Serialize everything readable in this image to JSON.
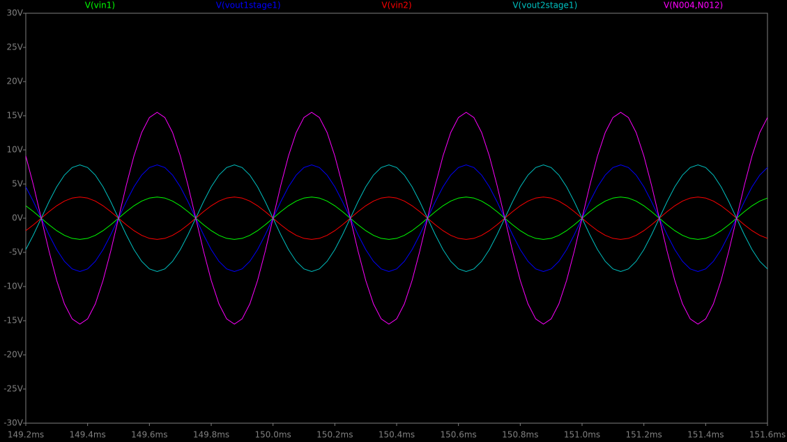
{
  "chart_data": {
    "type": "line",
    "x": [
      149.2,
      149.225,
      149.25,
      149.275,
      149.3,
      149.325,
      149.35,
      149.375,
      149.4,
      149.425,
      149.45,
      149.475,
      149.5,
      149.525,
      149.55,
      149.575,
      149.6,
      149.625,
      149.65,
      149.675,
      149.7,
      149.725,
      149.75,
      149.775,
      149.8,
      149.825,
      149.85,
      149.875,
      149.9,
      149.925,
      149.95,
      149.975,
      150.0,
      150.025,
      150.05,
      150.075,
      150.1,
      150.125,
      150.15,
      150.175,
      150.2,
      150.225,
      150.25,
      150.275,
      150.3,
      150.325,
      150.35,
      150.375,
      150.4,
      150.425,
      150.45,
      150.475,
      150.5,
      150.525,
      150.55,
      150.575,
      150.6,
      150.625,
      150.65,
      150.675,
      150.7,
      150.725,
      150.75,
      150.775,
      150.8,
      150.825,
      150.85,
      150.875,
      150.9,
      150.925,
      150.95,
      150.975,
      151.0,
      151.025,
      151.05,
      151.075,
      151.1,
      151.125,
      151.15,
      151.175,
      151.2,
      151.225,
      151.25,
      151.275,
      151.3,
      151.325,
      151.35,
      151.375,
      151.4,
      151.425,
      151.45,
      151.475,
      151.5,
      151.525,
      151.55,
      151.575,
      151.6
    ],
    "series": [
      {
        "name": "V(vin1)",
        "color": "#00ff00",
        "values": [
          1.82,
          0.96,
          0,
          -0.96,
          -1.82,
          -2.51,
          -2.95,
          -3.1,
          -2.95,
          -2.51,
          -1.82,
          -0.96,
          0,
          0.96,
          1.82,
          2.51,
          2.95,
          3.1,
          2.95,
          2.51,
          1.82,
          0.96,
          0,
          -0.96,
          -1.82,
          -2.51,
          -2.95,
          -3.1,
          -2.95,
          -2.51,
          -1.82,
          -0.96,
          0,
          0.96,
          1.82,
          2.51,
          2.95,
          3.1,
          2.95,
          2.51,
          1.82,
          0.96,
          0,
          -0.96,
          -1.82,
          -2.51,
          -2.95,
          -3.1,
          -2.95,
          -2.51,
          -1.82,
          -0.96,
          0,
          0.96,
          1.82,
          2.51,
          2.95,
          3.1,
          2.95,
          2.51,
          1.82,
          0.96,
          0,
          -0.96,
          -1.82,
          -2.51,
          -2.95,
          -3.1,
          -2.95,
          -2.51,
          -1.82,
          -0.96,
          0,
          0.96,
          1.82,
          2.51,
          2.95,
          3.1,
          2.95,
          2.51,
          1.82,
          0.96,
          0,
          -0.96,
          -1.82,
          -2.51,
          -2.95,
          -3.1,
          -2.95,
          -2.51,
          -1.82,
          -0.96,
          0,
          0.96,
          1.82,
          2.51,
          2.95
        ]
      },
      {
        "name": "V(vout1stage1)",
        "color": "#0000ff",
        "values": [
          4.59,
          2.41,
          0,
          -2.41,
          -4.59,
          -6.31,
          -7.42,
          -7.8,
          -7.42,
          -6.31,
          -4.59,
          -2.41,
          0,
          2.41,
          4.59,
          6.31,
          7.42,
          7.8,
          7.42,
          6.31,
          4.59,
          2.41,
          0,
          -2.41,
          -4.59,
          -6.31,
          -7.42,
          -7.8,
          -7.42,
          -6.31,
          -4.59,
          -2.41,
          0,
          2.41,
          4.59,
          6.31,
          7.42,
          7.8,
          7.42,
          6.31,
          4.59,
          2.41,
          0,
          -2.41,
          -4.59,
          -6.31,
          -7.42,
          -7.8,
          -7.42,
          -6.31,
          -4.59,
          -2.41,
          0,
          2.41,
          4.59,
          6.31,
          7.42,
          7.8,
          7.42,
          6.31,
          4.59,
          2.41,
          0,
          -2.41,
          -4.59,
          -6.31,
          -7.42,
          -7.8,
          -7.42,
          -6.31,
          -4.59,
          -2.41,
          0,
          2.41,
          4.59,
          6.31,
          7.42,
          7.8,
          7.42,
          6.31,
          4.59,
          2.41,
          0,
          -2.41,
          -4.59,
          -6.31,
          -7.42,
          -7.8,
          -7.42,
          -6.31,
          -4.59,
          -2.41,
          0,
          2.41,
          4.59,
          6.31,
          7.42
        ]
      },
      {
        "name": "V(vin2)",
        "color": "#ff0000",
        "values": [
          -1.82,
          -0.96,
          0,
          0.96,
          1.82,
          2.51,
          2.95,
          3.1,
          2.95,
          2.51,
          1.82,
          0.96,
          0,
          -0.96,
          -1.82,
          -2.51,
          -2.95,
          -3.1,
          -2.95,
          -2.51,
          -1.82,
          -0.96,
          0,
          0.96,
          1.82,
          2.51,
          2.95,
          3.1,
          2.95,
          2.51,
          1.82,
          0.96,
          0,
          -0.96,
          -1.82,
          -2.51,
          -2.95,
          -3.1,
          -2.95,
          -2.51,
          -1.82,
          -0.96,
          0,
          0.96,
          1.82,
          2.51,
          2.95,
          3.1,
          2.95,
          2.51,
          1.82,
          0.96,
          0,
          -0.96,
          -1.82,
          -2.51,
          -2.95,
          -3.1,
          -2.95,
          -2.51,
          -1.82,
          -0.96,
          0,
          0.96,
          1.82,
          2.51,
          2.95,
          3.1,
          2.95,
          2.51,
          1.82,
          0.96,
          0,
          -0.96,
          -1.82,
          -2.51,
          -2.95,
          -3.1,
          -2.95,
          -2.51,
          -1.82,
          -0.96,
          0,
          0.96,
          1.82,
          2.51,
          2.95,
          3.1,
          2.95,
          2.51,
          1.82,
          0.96,
          0,
          -0.96,
          -1.82,
          -2.51,
          -2.95
        ]
      },
      {
        "name": "V(vout2stage1)",
        "color": "#00c0c0",
        "values": [
          -4.59,
          -2.41,
          0,
          2.41,
          4.59,
          6.31,
          7.42,
          7.8,
          7.42,
          6.31,
          4.59,
          2.41,
          0,
          -2.41,
          -4.59,
          -6.31,
          -7.42,
          -7.8,
          -7.42,
          -6.31,
          -4.59,
          -2.41,
          0,
          2.41,
          4.59,
          6.31,
          7.42,
          7.8,
          7.42,
          6.31,
          4.59,
          2.41,
          0,
          -2.41,
          -4.59,
          -6.31,
          -7.42,
          -7.8,
          -7.42,
          -6.31,
          -4.59,
          -2.41,
          0,
          2.41,
          4.59,
          6.31,
          7.42,
          7.8,
          7.42,
          6.31,
          4.59,
          2.41,
          0,
          -2.41,
          -4.59,
          -6.31,
          -7.42,
          -7.8,
          -7.42,
          -6.31,
          -4.59,
          -2.41,
          0,
          2.41,
          4.59,
          6.31,
          7.42,
          7.8,
          7.42,
          6.31,
          4.59,
          2.41,
          0,
          -2.41,
          -4.59,
          -6.31,
          -7.42,
          -7.8,
          -7.42,
          -6.31,
          -4.59,
          -2.41,
          0,
          2.41,
          4.59,
          6.31,
          7.42,
          7.8,
          7.42,
          6.31,
          4.59,
          2.41,
          0,
          -2.41,
          -4.59,
          -6.31,
          -7.42
        ]
      },
      {
        "name": "V(N004,N012)",
        "color": "#ff00ff",
        "values": [
          9.11,
          4.79,
          0,
          -4.79,
          -9.11,
          -12.54,
          -14.74,
          -15.5,
          -14.74,
          -12.54,
          -9.11,
          -4.79,
          0,
          4.79,
          9.11,
          12.54,
          14.74,
          15.5,
          14.74,
          12.54,
          9.11,
          4.79,
          0,
          -4.79,
          -9.11,
          -12.54,
          -14.74,
          -15.5,
          -14.74,
          -12.54,
          -9.11,
          -4.79,
          0,
          4.79,
          9.11,
          12.54,
          14.74,
          15.5,
          14.74,
          12.54,
          9.11,
          4.79,
          0,
          -4.79,
          -9.11,
          -12.54,
          -14.74,
          -15.5,
          -14.74,
          -12.54,
          -9.11,
          -4.79,
          0,
          4.79,
          9.11,
          12.54,
          14.74,
          15.5,
          14.74,
          12.54,
          9.11,
          4.79,
          0,
          -4.79,
          -9.11,
          -12.54,
          -14.74,
          -15.5,
          -14.74,
          -12.54,
          -9.11,
          -4.79,
          0,
          4.79,
          9.11,
          12.54,
          14.74,
          15.5,
          14.74,
          12.54,
          9.11,
          4.79,
          0,
          -4.79,
          -9.11,
          -12.54,
          -14.74,
          -15.5,
          -14.74,
          -12.54,
          -9.11,
          -4.79,
          0,
          4.79,
          9.11,
          12.54,
          14.74
        ]
      }
    ],
    "xlim": [
      149.2,
      151.6
    ],
    "xticks": [
      {
        "value": 149.2,
        "label": "149.2ms"
      },
      {
        "value": 149.4,
        "label": "149.4ms"
      },
      {
        "value": 149.6,
        "label": "149.6ms"
      },
      {
        "value": 149.8,
        "label": "149.8ms"
      },
      {
        "value": 150.0,
        "label": "150.0ms"
      },
      {
        "value": 150.2,
        "label": "150.2ms"
      },
      {
        "value": 150.4,
        "label": "150.4ms"
      },
      {
        "value": 150.6,
        "label": "150.6ms"
      },
      {
        "value": 150.8,
        "label": "150.8ms"
      },
      {
        "value": 151.0,
        "label": "151.0ms"
      },
      {
        "value": 151.2,
        "label": "151.2ms"
      },
      {
        "value": 151.4,
        "label": "151.4ms"
      },
      {
        "value": 151.6,
        "label": "151.6ms"
      }
    ],
    "ylim": [
      -30,
      30
    ],
    "yticks": [
      {
        "value": 30,
        "label": "30V"
      },
      {
        "value": 25,
        "label": "25V"
      },
      {
        "value": 20,
        "label": "20V"
      },
      {
        "value": 15,
        "label": "15V"
      },
      {
        "value": 10,
        "label": "10V"
      },
      {
        "value": 5,
        "label": "5V"
      },
      {
        "value": 0,
        "label": "0V"
      },
      {
        "value": -5,
        "label": "-5V"
      },
      {
        "value": -10,
        "label": "-10V"
      },
      {
        "value": -15,
        "label": "-15V"
      },
      {
        "value": -20,
        "label": "-20V"
      },
      {
        "value": -25,
        "label": "-25V"
      },
      {
        "value": -30,
        "label": "-30V"
      }
    ],
    "grid": false
  }
}
